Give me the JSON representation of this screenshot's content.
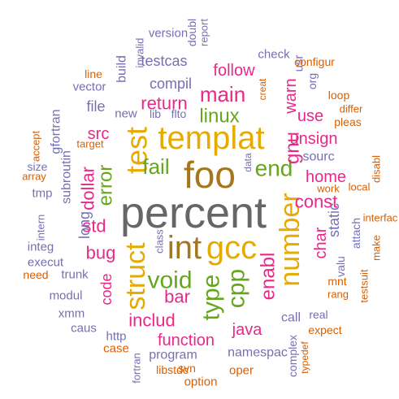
{
  "palette": {
    "gray": "#666666",
    "olive": "#a6761d",
    "gold": "#e6ab02",
    "green": "#66a61e",
    "pink": "#e7298a",
    "purple": "#7570b3",
    "orange": "#d95f02"
  },
  "words": [
    {
      "text": "percent",
      "color": "gray"
    },
    {
      "text": "int",
      "color": "olive"
    },
    {
      "text": "gcc",
      "color": "gold"
    },
    {
      "text": "foo",
      "color": "olive"
    },
    {
      "text": "templat",
      "color": "gold"
    },
    {
      "text": "test",
      "color": "gold"
    },
    {
      "text": "number",
      "color": "gold"
    },
    {
      "text": "struct",
      "color": "gold"
    },
    {
      "text": "void",
      "color": "green"
    },
    {
      "text": "type",
      "color": "green"
    },
    {
      "text": "cpp",
      "color": "green"
    },
    {
      "text": "end",
      "color": "green"
    },
    {
      "text": "fail",
      "color": "green"
    },
    {
      "text": "main",
      "color": "pink"
    },
    {
      "text": "linux",
      "color": "green"
    },
    {
      "text": "return",
      "color": "pink"
    },
    {
      "text": "gnu",
      "color": "pink"
    },
    {
      "text": "warn",
      "color": "pink"
    },
    {
      "text": "const",
      "color": "pink"
    },
    {
      "text": "enabl",
      "color": "pink"
    },
    {
      "text": "error",
      "color": "green"
    },
    {
      "text": "dollar",
      "color": "pink"
    },
    {
      "text": "bug",
      "color": "pink"
    },
    {
      "text": "std",
      "color": "pink"
    },
    {
      "text": "includ",
      "color": "pink"
    },
    {
      "text": "bar",
      "color": "pink"
    },
    {
      "text": "function",
      "color": "pink"
    },
    {
      "text": "java",
      "color": "pink"
    },
    {
      "text": "follow",
      "color": "pink"
    },
    {
      "text": "unsign",
      "color": "pink"
    },
    {
      "text": "home",
      "color": "pink"
    },
    {
      "text": "src",
      "color": "pink"
    },
    {
      "text": "use",
      "color": "pink"
    },
    {
      "text": "char",
      "color": "pink"
    },
    {
      "text": "code",
      "color": "pink"
    },
    {
      "text": "compil",
      "color": "purple"
    },
    {
      "text": "testcas",
      "color": "purple"
    },
    {
      "text": "file",
      "color": "purple"
    },
    {
      "text": "static",
      "color": "purple"
    },
    {
      "text": "long",
      "color": "purple"
    },
    {
      "text": "subroutin",
      "color": "purple"
    },
    {
      "text": "gfortran",
      "color": "purple"
    },
    {
      "text": "sourc",
      "color": "purple"
    },
    {
      "text": "call",
      "color": "purple"
    },
    {
      "text": "namespac",
      "color": "purple"
    },
    {
      "text": "program",
      "color": "purple"
    },
    {
      "text": "version",
      "color": "purple"
    },
    {
      "text": "check",
      "color": "purple"
    },
    {
      "text": "usr",
      "color": "purple"
    },
    {
      "text": "org",
      "color": "purple"
    },
    {
      "text": "build",
      "color": "purple"
    },
    {
      "text": "vector",
      "color": "purple"
    },
    {
      "text": "new",
      "color": "purple"
    },
    {
      "text": "lib",
      "color": "purple"
    },
    {
      "text": "flto",
      "color": "purple"
    },
    {
      "text": "invalid",
      "color": "purple"
    },
    {
      "text": "doubl",
      "color": "purple"
    },
    {
      "text": "report",
      "color": "purple"
    },
    {
      "text": "tmp",
      "color": "purple"
    },
    {
      "text": "integ",
      "color": "purple"
    },
    {
      "text": "execut",
      "color": "purple"
    },
    {
      "text": "trunk",
      "color": "purple"
    },
    {
      "text": "modul",
      "color": "purple"
    },
    {
      "text": "xmm",
      "color": "purple"
    },
    {
      "text": "caus",
      "color": "purple"
    },
    {
      "text": "http",
      "color": "purple"
    },
    {
      "text": "intern",
      "color": "purple"
    },
    {
      "text": "size",
      "color": "purple"
    },
    {
      "text": "class",
      "color": "purple"
    },
    {
      "text": "valu",
      "color": "purple"
    },
    {
      "text": "attach",
      "color": "purple"
    },
    {
      "text": "real",
      "color": "purple"
    },
    {
      "text": "complex",
      "color": "purple"
    },
    {
      "text": "fortran",
      "color": "purple"
    },
    {
      "text": "data",
      "color": "purple"
    },
    {
      "text": "configur",
      "color": "orange"
    },
    {
      "text": "loop",
      "color": "orange"
    },
    {
      "text": "differ",
      "color": "orange"
    },
    {
      "text": "pleas",
      "color": "orange"
    },
    {
      "text": "line",
      "color": "orange"
    },
    {
      "text": "creat",
      "color": "orange"
    },
    {
      "text": "accept",
      "color": "orange"
    },
    {
      "text": "target",
      "color": "orange"
    },
    {
      "text": "array",
      "color": "orange"
    },
    {
      "text": "work",
      "color": "orange"
    },
    {
      "text": "local",
      "color": "orange"
    },
    {
      "text": "disabl",
      "color": "orange"
    },
    {
      "text": "interfac",
      "color": "orange"
    },
    {
      "text": "make",
      "color": "orange"
    },
    {
      "text": "mnt",
      "color": "orange"
    },
    {
      "text": "rang",
      "color": "orange"
    },
    {
      "text": "testsuit",
      "color": "orange"
    },
    {
      "text": "expect",
      "color": "orange"
    },
    {
      "text": "typedef",
      "color": "orange"
    },
    {
      "text": "need",
      "color": "orange"
    },
    {
      "text": "case",
      "color": "orange"
    },
    {
      "text": "svn",
      "color": "orange"
    },
    {
      "text": "oper",
      "color": "orange"
    },
    {
      "text": "option",
      "color": "orange"
    },
    {
      "text": "libstdc",
      "color": "orange"
    }
  ]
}
